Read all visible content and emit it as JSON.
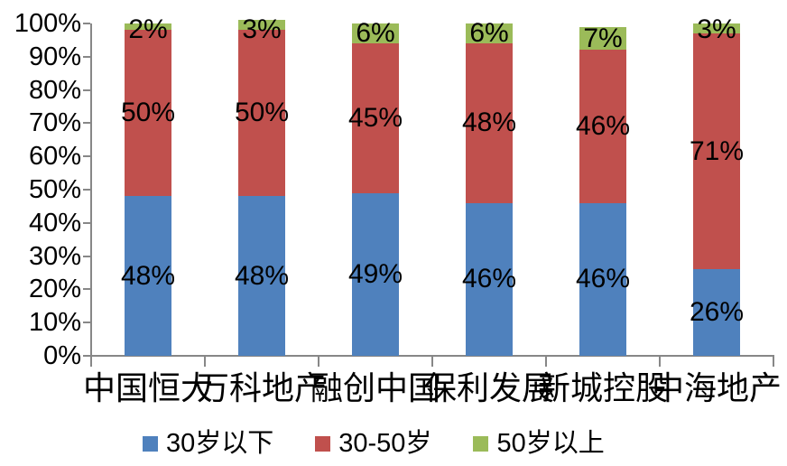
{
  "chart_data": {
    "type": "bar",
    "stacked": true,
    "orientation": "vertical",
    "title": "",
    "xlabel": "",
    "ylabel": "",
    "categories": [
      "中国恒大",
      "万科地产",
      "融创中国",
      "保利发展",
      "新城控股",
      "中海地产"
    ],
    "series": [
      {
        "name": "30岁以下",
        "color": "#4F81BD",
        "values": [
          48,
          48,
          49,
          46,
          46,
          26
        ]
      },
      {
        "name": "30-50岁",
        "color": "#C0504D",
        "values": [
          50,
          50,
          45,
          48,
          46,
          71
        ]
      },
      {
        "name": "50岁以上",
        "color": "#9BBB59",
        "values": [
          2,
          3,
          6,
          6,
          7,
          3
        ]
      }
    ],
    "value_suffix": "%",
    "data_labels": true,
    "ylim": [
      0,
      100
    ],
    "ytick_step": 10,
    "ytick_labels": [
      "0%",
      "10%",
      "20%",
      "30%",
      "40%",
      "50%",
      "60%",
      "70%",
      "80%",
      "90%",
      "100%"
    ],
    "grid": false,
    "legend_position": "bottom",
    "axis_color": "#878787",
    "text_color": "#000000",
    "background_color": "#FFFFFF"
  }
}
